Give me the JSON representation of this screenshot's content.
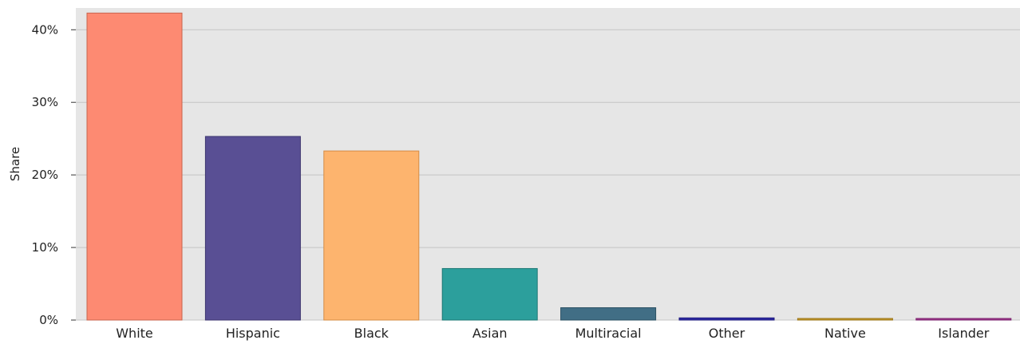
{
  "chart_data": {
    "type": "bar",
    "title": "",
    "xlabel": "",
    "ylabel": "Share",
    "ylim": [
      0,
      43
    ],
    "yticks": [
      0,
      10,
      20,
      30,
      40
    ],
    "ytick_labels": [
      "0%",
      "10%",
      "20%",
      "30%",
      "40%"
    ],
    "grid": true,
    "categories": [
      "White",
      "Hispanic",
      "Black",
      "Asian",
      "Multiracial",
      "Other",
      "Native",
      "Islander"
    ],
    "values": [
      42.3,
      25.3,
      23.3,
      7.1,
      1.7,
      0.3,
      0.15,
      0.1
    ],
    "colors": [
      "#fd8a72",
      "#594f94",
      "#fdb46e",
      "#2c9f9c",
      "#416e85",
      "#2d2aa3",
      "#c79a2a",
      "#a0378f"
    ],
    "border_colors": [
      "#c8654f",
      "#3e356f",
      "#d48c45",
      "#1d7875",
      "#2b5063",
      "#1e1b7e",
      "#9a7418",
      "#7a236c"
    ],
    "background": "#e6e6e6",
    "gridline_color": "#c4c4c4"
  }
}
